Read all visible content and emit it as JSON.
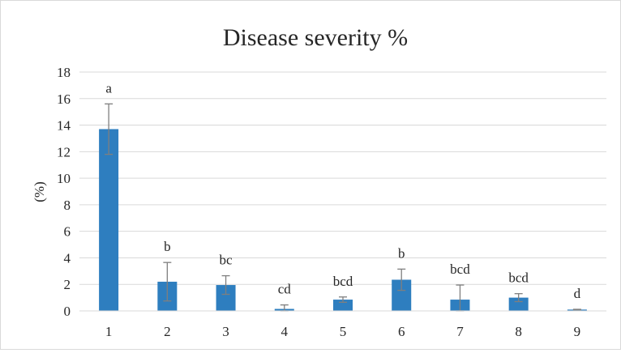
{
  "chart_data": {
    "type": "bar",
    "title": "Disease severity %",
    "ylabel": "(%)",
    "xlabel": "",
    "categories": [
      "1",
      "2",
      "3",
      "4",
      "5",
      "6",
      "7",
      "8",
      "9"
    ],
    "values": [
      13.7,
      2.2,
      1.95,
      0.15,
      0.85,
      2.35,
      0.85,
      1.0,
      0.1
    ],
    "error": [
      1.9,
      1.45,
      0.7,
      0.3,
      0.2,
      0.8,
      1.1,
      0.3,
      0.02
    ],
    "labels": [
      "a",
      "b",
      "bc",
      "cd",
      "bcd",
      "b",
      "bcd",
      "bcd",
      "d"
    ],
    "ylim": [
      0,
      18
    ],
    "yticks": [
      "0",
      "2",
      "4",
      "6",
      "8",
      "10",
      "12",
      "14",
      "16",
      "18"
    ],
    "grid": true,
    "legend": "none",
    "bar_color": "#2e7ebf",
    "error_color": "#7f7f7f",
    "grid_color": "#d9d9d9"
  }
}
